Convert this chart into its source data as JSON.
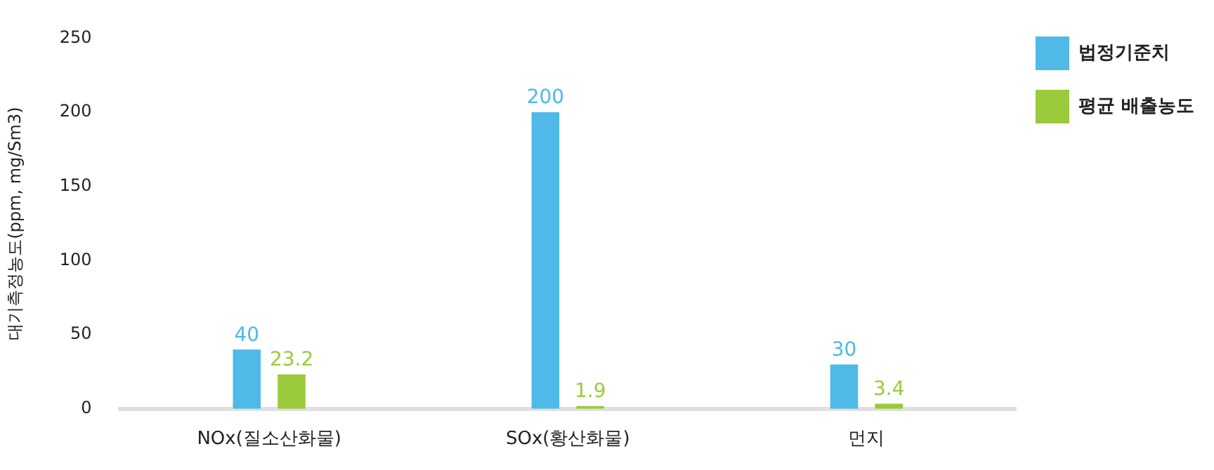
{
  "chart_data": {
    "type": "bar",
    "ylabel": "대기측정농도(ppm, mg/Sm3)",
    "categories": [
      "NOx(질소산화물)",
      "SOx(황산화물)",
      "먼지"
    ],
    "series": [
      {
        "name": "법정기준치",
        "color": "#4fb9e8",
        "values": [
          40,
          200,
          30
        ]
      },
      {
        "name": "평균 배출농도",
        "color": "#9aca3c",
        "values": [
          23.2,
          1.9,
          3.4
        ]
      }
    ],
    "ylim": [
      0,
      250
    ],
    "yticks": [
      0,
      50,
      100,
      150,
      200,
      250
    ],
    "grid": false,
    "legend": "top right",
    "data_labels": true
  }
}
